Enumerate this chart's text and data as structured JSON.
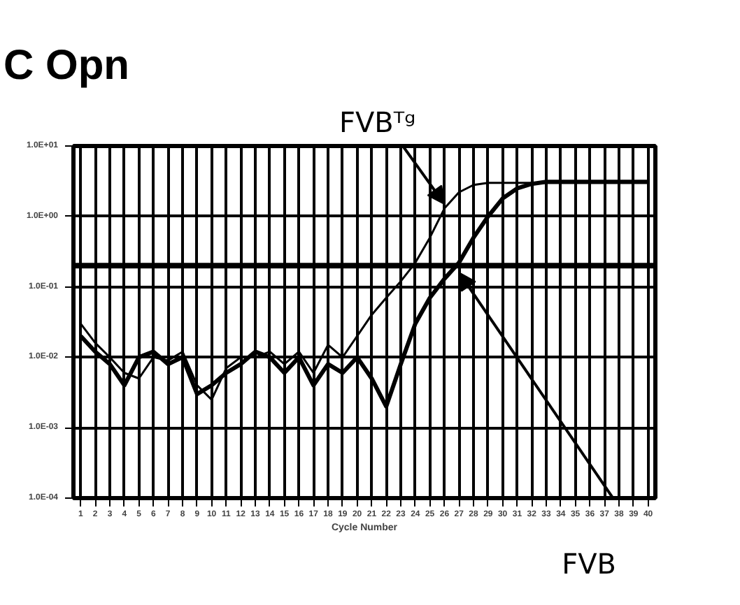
{
  "chart_data": {
    "type": "line",
    "title": "C Opn",
    "xlabel": "Cycle Number",
    "log": "y",
    "grid": true,
    "marker": "none",
    "line_style": "solid",
    "xlim": [
      0.5,
      40.5
    ],
    "ylim": [
      0.0001,
      10
    ],
    "xticks": [
      1,
      2,
      3,
      4,
      5,
      6,
      7,
      8,
      9,
      10,
      11,
      12,
      13,
      14,
      15,
      16,
      17,
      18,
      19,
      20,
      21,
      22,
      23,
      24,
      25,
      26,
      27,
      28,
      29,
      30,
      31,
      32,
      33,
      34,
      35,
      36,
      37,
      38,
      39,
      40
    ],
    "yticks": [
      {
        "value": 0.0001,
        "label": "1.0E-04"
      },
      {
        "value": 0.001,
        "label": "1.0E-03"
      },
      {
        "value": 0.01,
        "label": "1.0E-02"
      },
      {
        "value": 0.1,
        "label": "1.0E-01"
      },
      {
        "value": 1,
        "label": "1.0E+00"
      },
      {
        "value": 10,
        "label": "1.0E+01"
      }
    ],
    "x": [
      1,
      2,
      3,
      4,
      5,
      6,
      7,
      8,
      9,
      10,
      11,
      12,
      13,
      14,
      15,
      16,
      17,
      18,
      19,
      20,
      21,
      22,
      23,
      24,
      25,
      26,
      27,
      28,
      29,
      30,
      31,
      32,
      33,
      34,
      35,
      36,
      37,
      38,
      39,
      40
    ],
    "series": [
      {
        "color": "#000000",
        "values": [
          0.03,
          0.016,
          0.01,
          0.006,
          0.005,
          0.01,
          0.009,
          0.012,
          0.004,
          0.0025,
          0.007,
          0.01,
          0.01,
          0.012,
          0.008,
          0.012,
          0.006,
          0.015,
          0.01,
          0.02,
          0.04,
          0.07,
          0.12,
          0.22,
          0.5,
          1.3,
          2.2,
          2.8,
          3.0,
          3.0,
          3.0,
          3.0,
          3.0,
          3.0,
          3.0,
          3.0,
          3.0,
          3.0,
          3.0,
          3.0
        ]
      },
      {
        "color": "#000000",
        "values": [
          0.02,
          0.012,
          0.008,
          0.004,
          0.01,
          0.012,
          0.008,
          0.01,
          0.003,
          0.004,
          0.006,
          0.008,
          0.012,
          0.01,
          0.006,
          0.01,
          0.004,
          0.008,
          0.006,
          0.01,
          0.005,
          0.002,
          0.008,
          0.03,
          0.07,
          0.13,
          0.22,
          0.5,
          1.0,
          1.8,
          2.5,
          2.9,
          3.1,
          3.1,
          3.1,
          3.1,
          3.1,
          3.1,
          3.1,
          3.1
        ]
      }
    ],
    "ref_lines": [
      {
        "axis": "y",
        "value": 0.2,
        "color": "#000000"
      }
    ],
    "annotations": [
      {
        "text": "FVBᵀᵍ",
        "x": 26,
        "y": 1.5
      },
      {
        "text": "FVB",
        "x": 27,
        "y": 0.16
      }
    ]
  }
}
